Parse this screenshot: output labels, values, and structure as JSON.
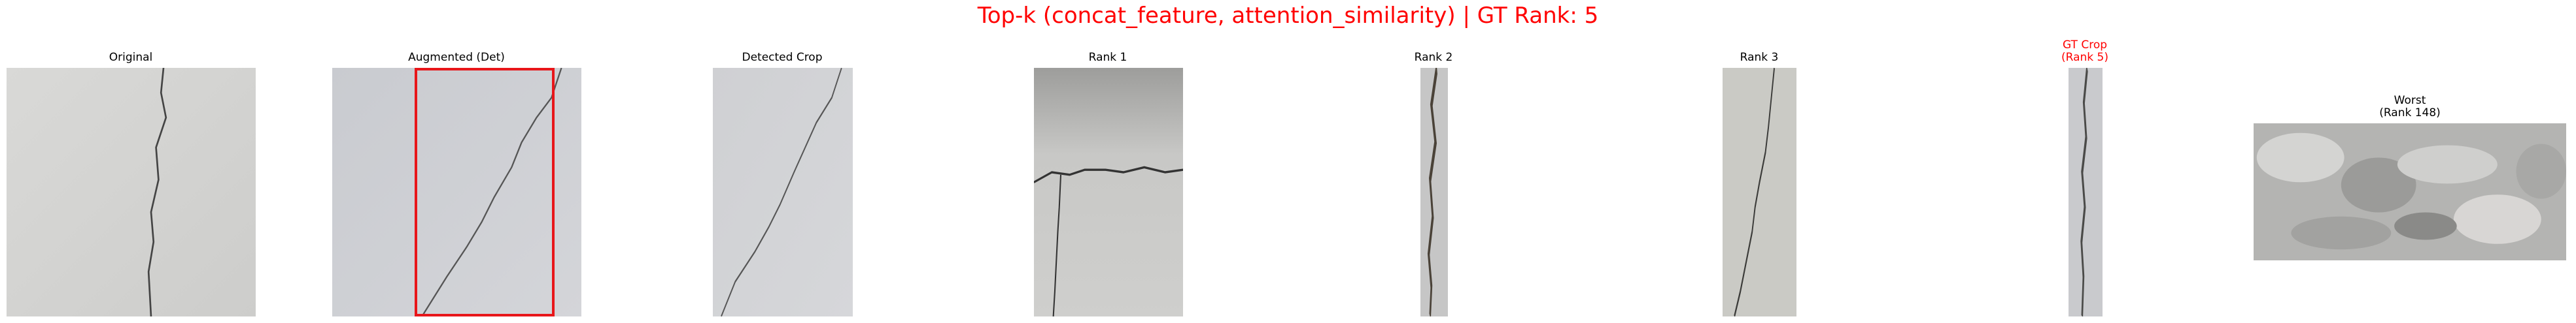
{
  "figure": {
    "suptitle": "Top-k (concat_feature, attention_similarity) | GT Rank: 5",
    "title_color": "#ff0000",
    "panels": [
      {
        "id": "original",
        "title": "Original"
      },
      {
        "id": "augmented",
        "title": "Augmented (Det)",
        "bbox_color": "#e8161a"
      },
      {
        "id": "detected",
        "title": "Detected Crop"
      },
      {
        "id": "rank1",
        "title": "Rank 1"
      },
      {
        "id": "rank2",
        "title": "Rank 2"
      },
      {
        "id": "rank3",
        "title": "Rank 3"
      },
      {
        "id": "gt",
        "title_line1": "GT Crop",
        "title_line2": "(Rank 5)",
        "title_color": "#ff0000"
      },
      {
        "id": "worst",
        "title_line1": "Worst",
        "title_line2": "(Rank 148)"
      }
    ]
  }
}
